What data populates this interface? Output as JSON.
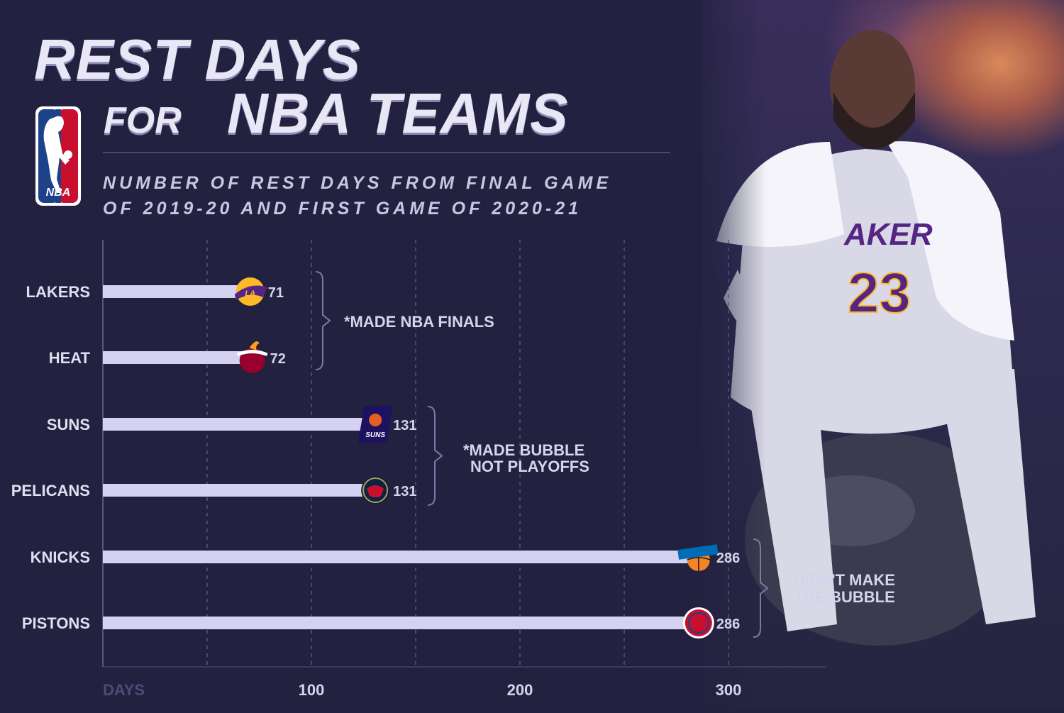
{
  "header": {
    "title_line1": "REST DAYS",
    "title_for": "FOR",
    "title_line2": "NBA TEAMS",
    "subtitle_line1": "NUMBER OF REST DAYS FROM FINAL GAME",
    "subtitle_line2": "OF 2019-20 AND FIRST GAME OF 2020-21",
    "logo_text": "NBA"
  },
  "colors": {
    "background": "#22213f",
    "bar": "#d4d2f0",
    "grid": "#57557f",
    "lakers": "#552583",
    "lakers_gold": "#fdb927",
    "heat": "#98002e",
    "suns": "#1d1160",
    "suns_orange": "#e56020",
    "pelicans": "#0c2340",
    "knicks": "#006bb6",
    "knicks_orange": "#f58426",
    "pistons": "#c8102e"
  },
  "chart_data": {
    "type": "bar",
    "orientation": "horizontal",
    "categories": [
      "LAKERS",
      "HEAT",
      "SUNS",
      "PELICANS",
      "KNICKS",
      "PISTONS"
    ],
    "values": [
      71,
      72,
      131,
      131,
      286,
      286
    ],
    "xlabel": "DAYS",
    "xlim": [
      0,
      340
    ],
    "xticks": [
      100,
      200,
      300
    ],
    "xtick_labels": [
      "100",
      "200",
      "300"
    ],
    "grid": true,
    "team_icons": [
      "lakers-icon",
      "heat-icon",
      "suns-icon",
      "pelicans-icon",
      "knicks-icon",
      "pistons-icon"
    ],
    "annotations": [
      {
        "lines": [
          "*MADE NBA FINALS"
        ],
        "categories": [
          "LAKERS",
          "HEAT"
        ]
      },
      {
        "lines": [
          "*MADE BUBBLE",
          "NOT PLAYOFFS"
        ],
        "categories": [
          "SUNS",
          "PELICANS"
        ]
      },
      {
        "lines": [
          "*DIDN'T MAKE",
          "THE BUBBLE"
        ],
        "categories": [
          "KNICKS",
          "PISTONS"
        ]
      }
    ]
  }
}
